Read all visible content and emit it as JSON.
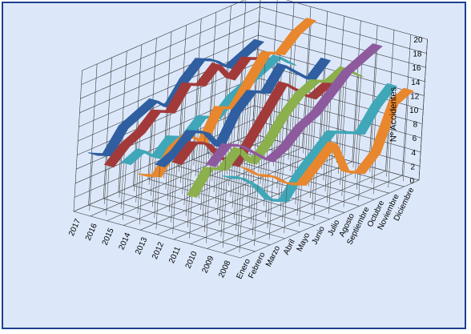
{
  "chart_data": {
    "type": "line",
    "subtype": "3d-ribbon",
    "title": "",
    "ylabel": "Nº Accidentes",
    "zlim": [
      0,
      20
    ],
    "z_ticks": [
      0,
      2,
      4,
      6,
      8,
      10,
      12,
      14,
      16,
      18,
      20
    ],
    "grid": true,
    "legend": "none",
    "months": [
      "Enero",
      "Febrero",
      "Marzo",
      "Abril",
      "Mayo",
      "Junio",
      "Julio",
      "Agosto",
      "Septiembre",
      "Octubre",
      "Noviembre",
      "Diciembre"
    ],
    "series": [
      {
        "name": "2008",
        "color": "#e8872e",
        "values": [
          12,
          10,
          9,
          7,
          6,
          8,
          10,
          5,
          4,
          6,
          12,
          13
        ]
      },
      {
        "name": "2009",
        "color": "#3fa7b8",
        "values": [
          10,
          9,
          7,
          4,
          3,
          6,
          8,
          10,
          9,
          8,
          11,
          13
        ]
      },
      {
        "name": "2010",
        "color": "#8e5a9e",
        "values": [
          11,
          13,
          12,
          10,
          8,
          9,
          11,
          12,
          14,
          16,
          17,
          18
        ]
      },
      {
        "name": "2011",
        "color": "#8bb04c",
        "values": [
          6,
          9,
          8,
          10,
          7,
          9,
          12,
          14,
          15,
          14,
          15,
          13
        ]
      },
      {
        "name": "2012",
        "color": "#a33a3a",
        "values": [
          10,
          12,
          11,
          8,
          6,
          9,
          12,
          15,
          13,
          11,
          12,
          13
        ]
      },
      {
        "name": "2013",
        "color": "#2f5fa0",
        "values": [
          9,
          10,
          12,
          11,
          8,
          12,
          14,
          13,
          16,
          14,
          12,
          14
        ]
      },
      {
        "name": "2014",
        "color": "#e8872e",
        "values": [
          7,
          6,
          9,
          10,
          8,
          12,
          11,
          14,
          17,
          16,
          18,
          19
        ]
      },
      {
        "name": "2015",
        "color": "#3fa7b8",
        "values": [
          8,
          9,
          7,
          9,
          8,
          10,
          9,
          11,
          12,
          13,
          14,
          12
        ]
      },
      {
        "name": "2016",
        "color": "#a33a3a",
        "values": [
          7,
          9,
          10,
          12,
          11,
          14,
          13,
          15,
          12,
          14,
          13,
          12
        ]
      },
      {
        "name": "2017",
        "color": "#2f5fa0",
        "values": [
          8,
          7,
          10,
          11,
          12,
          10,
          13,
          15,
          14,
          12,
          13,
          14
        ]
      }
    ]
  }
}
